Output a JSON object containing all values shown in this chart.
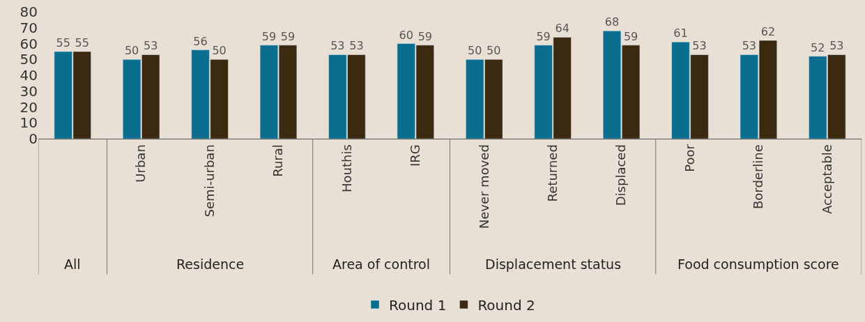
{
  "chart_data": {
    "type": "bar",
    "categories": [
      null,
      "Urban",
      "Semi-urban",
      "Rural",
      "Houthis",
      "IRG",
      "Never moved",
      "Returned",
      "Displaced",
      "Poor",
      "Borderline",
      "Acceptable"
    ],
    "series": [
      {
        "name": "Round 1",
        "color": "#0b6e8f",
        "values": [
          55,
          50,
          56,
          59,
          53,
          60,
          50,
          59,
          68,
          61,
          53,
          52
        ]
      },
      {
        "name": "Round 2",
        "color": "#3b2a0f",
        "values": [
          55,
          53,
          50,
          59,
          53,
          59,
          50,
          64,
          59,
          53,
          62,
          53
        ]
      }
    ],
    "annotations": [
      "All",
      "Residence",
      "Area of control",
      "Displacement status",
      "Food consumption score"
    ],
    "ylim": [
      0,
      80
    ],
    "yticks": [
      0,
      10,
      20,
      30,
      40,
      50,
      60,
      70,
      80
    ],
    "data_labels": true,
    "grid": false,
    "legend": "bottom"
  }
}
